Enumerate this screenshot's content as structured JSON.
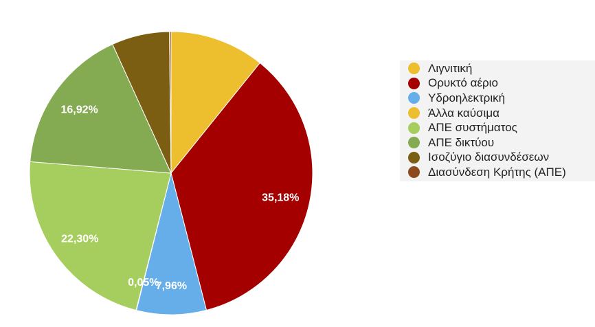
{
  "chart_data": {
    "type": "pie",
    "categories": [
      "Λιγνιτική",
      "Ορυκτό αέριο",
      "Υδροηλεκτρική",
      "Άλλα καύσιμα",
      "ΑΠΕ συστήματος",
      "ΑΠΕ δικτύου",
      "Ισοζύγιο διασυνδέσεων",
      "Διασύνδεση Κρήτης (ΑΠΕ)"
    ],
    "values": [
      10.8,
      35.18,
      7.96,
      0.05,
      22.3,
      16.92,
      6.6,
      0.19
    ],
    "labels": [
      "",
      "35,18%",
      "7,96%",
      "0,05%",
      "22,30%",
      "16,92%",
      "",
      ""
    ],
    "colors": [
      "#EDBE2E",
      "#A50000",
      "#66AEEA",
      "#EDBE2E",
      "#A6CE5E",
      "#84AA52",
      "#7B5E12",
      "#8C4A1E"
    ],
    "legend_position": "right",
    "grid": false
  }
}
